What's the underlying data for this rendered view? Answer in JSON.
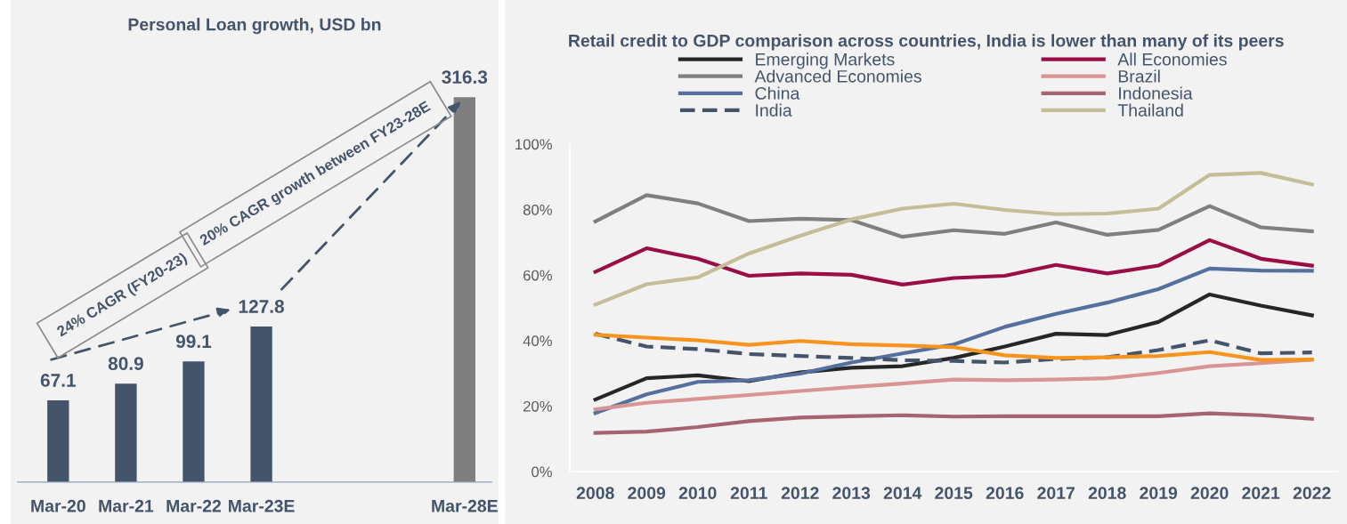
{
  "chart_data": [
    {
      "type": "bar",
      "title": "Personal Loan growth, USD bn",
      "categories": [
        "Mar-20",
        "Mar-21",
        "Mar-22",
        "Mar-23E",
        null,
        null,
        "Mar-28E"
      ],
      "values": [
        67.1,
        80.9,
        99.1,
        127.8,
        null,
        null,
        316.3
      ],
      "colors": [
        "#44546a",
        "#44546a",
        "#44546a",
        "#44546a",
        "#44546a",
        "#44546a",
        "#7f7f7f"
      ],
      "data_labels": true,
      "tick_labels": "x",
      "annotations": [
        "24% CAGR (FY20-23)",
        "20% CAGR growth between FY23-28E"
      ]
    },
    {
      "type": "line",
      "title": "Retail credit to GDP comparison across countries, India is lower than many of its peers",
      "categories": [
        "2008",
        "2009",
        "2010",
        "2011",
        "2012",
        "2013",
        "2014",
        "2015",
        "2016",
        "2017",
        "2018",
        "2019",
        "2020",
        "2021",
        "2022"
      ],
      "ylim": [
        0,
        100
      ],
      "yticks": [
        {
          "value": 0,
          "label": "0%"
        },
        {
          "value": 20,
          "label": "20%"
        },
        {
          "value": 40,
          "label": "40%"
        },
        {
          "value": 60,
          "label": "60%"
        },
        {
          "value": 80,
          "label": "80%"
        },
        {
          "value": 100,
          "label": "100%"
        }
      ],
      "grid": false,
      "legend": "top",
      "marker": "none",
      "series": [
        {
          "name": "Emerging Markets",
          "color": "#262626",
          "values": [
            22.0,
            28.5,
            29.4,
            27.6,
            30.3,
            31.7,
            32.2,
            34.7,
            38.2,
            42.1,
            41.7,
            45.7,
            54.1,
            50.7,
            47.7
          ]
        },
        {
          "name": "Advanced Economies",
          "color": "#7f7f7f",
          "values": [
            76.4,
            84.4,
            81.9,
            76.5,
            77.2,
            76.8,
            71.7,
            73.7,
            72.6,
            76.1,
            72.3,
            73.8,
            81.1,
            74.6,
            73.4
          ]
        },
        {
          "name": "China",
          "color": "#55709e",
          "values": [
            17.9,
            23.6,
            27.4,
            27.9,
            29.9,
            33.3,
            36.1,
            38.8,
            44.2,
            48.2,
            51.6,
            55.7,
            62.0,
            61.4,
            61.3
          ]
        },
        {
          "name": "India",
          "color": "#44546a",
          "line_style": "dashed",
          "values": [
            42.1,
            38.2,
            37.4,
            35.9,
            35.3,
            34.7,
            34.0,
            33.8,
            33.3,
            34.4,
            34.9,
            37.1,
            40.1,
            36.1,
            36.4
          ]
        },
        {
          "name": "All Economies",
          "color": "#9b0d45",
          "values": [
            61.0,
            68.2,
            65.0,
            59.8,
            60.5,
            60.1,
            57.1,
            59.1,
            59.8,
            63.1,
            60.5,
            62.9,
            70.7,
            65.0,
            62.9
          ]
        },
        {
          "name": "Brazil",
          "color": "#d99594",
          "values": [
            19.0,
            21.0,
            22.2,
            23.4,
            24.6,
            25.8,
            26.9,
            28.1,
            27.9,
            28.1,
            28.5,
            30.1,
            32.2,
            33.1,
            34.2
          ]
        },
        {
          "name": "Indonesia",
          "color": "#a5646f",
          "values": [
            11.8,
            12.2,
            13.6,
            15.4,
            16.5,
            16.9,
            17.2,
            16.8,
            16.9,
            16.9,
            16.9,
            16.9,
            17.8,
            17.2,
            16.1
          ]
        },
        {
          "name": "Thailand",
          "color": "#c4bd97",
          "values": [
            51.0,
            57.2,
            59.3,
            66.6,
            72.0,
            77.0,
            80.3,
            81.8,
            79.9,
            78.6,
            78.8,
            80.3,
            90.6,
            91.2,
            87.7
          ]
        },
        {
          "color": "#f7941d",
          "values": [
            41.8,
            40.9,
            40.1,
            38.7,
            39.9,
            38.9,
            38.5,
            38.0,
            35.5,
            34.7,
            34.9,
            35.3,
            36.5,
            34.1,
            34.2
          ]
        }
      ]
    }
  ]
}
